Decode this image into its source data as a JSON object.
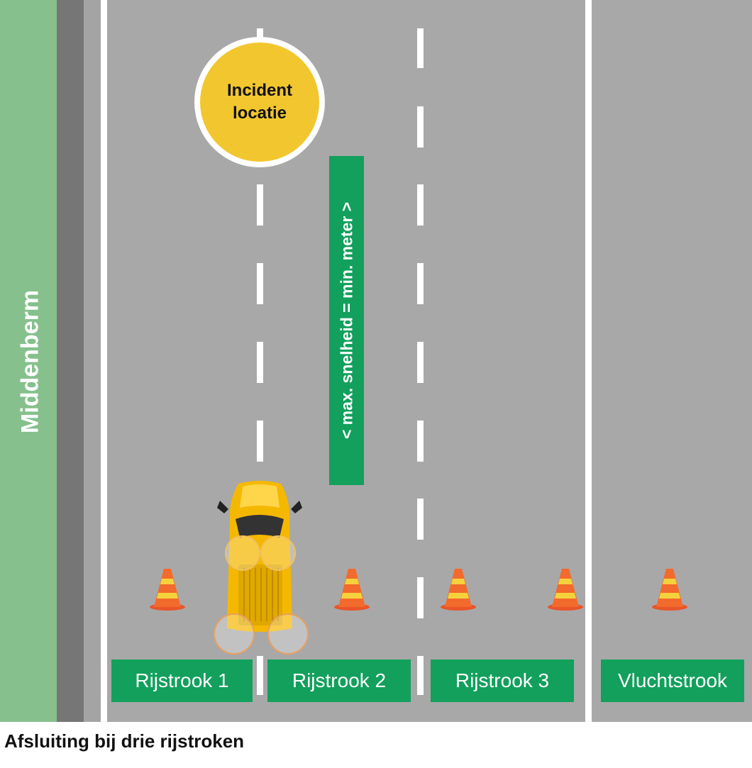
{
  "median": {
    "label": "Middenberm",
    "color": "#86c08c"
  },
  "incident": {
    "line1": "Incident",
    "line2": "locatie",
    "color": "#f2c62e"
  },
  "speed_sign": {
    "text": "< max. snelheid = min. meter >",
    "color": "#12a05c"
  },
  "lanes": [
    {
      "label": "Rijstrook 1"
    },
    {
      "label": "Rijstrook 2"
    },
    {
      "label": "Rijstrook 3"
    },
    {
      "label": "Vluchtstrook"
    }
  ],
  "caption": "Afsluiting bij drie rijstroken",
  "colors": {
    "road": "#a8a8a8",
    "barrier": "#767676",
    "cone": "#f26a2c",
    "cone_stripe": "#f5d23c",
    "vehicle": "#f5b800"
  },
  "icons": [
    "traffic-cone-icon",
    "road-inspector-vehicle-icon"
  ]
}
